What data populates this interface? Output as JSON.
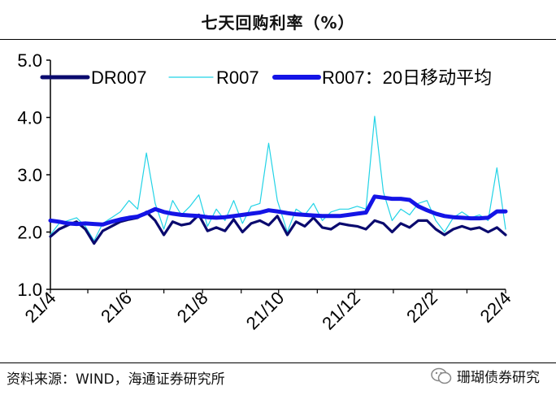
{
  "header": {
    "title": "七天回购利率（%）"
  },
  "footer": {
    "source": "资料来源：WIND，海通证券研究所",
    "watermark": "珊瑚债券研究"
  },
  "chart_data": {
    "type": "line",
    "title": "七天回购利率（%）",
    "xlabel": "",
    "ylabel": "",
    "ylim": [
      1.0,
      5.0
    ],
    "yticks": [
      "1.0",
      "2.0",
      "3.0",
      "4.0",
      "5.0"
    ],
    "xticks": [
      "21/4",
      "21/6",
      "21/8",
      "21/10",
      "21/12",
      "22/2",
      "22/4"
    ],
    "grid": false,
    "legend": "top",
    "colors": {
      "DR007": "#0a0a6e",
      "R007": "#22d3e6",
      "R007_MA20": "#1414e6"
    },
    "series": [
      {
        "name": "DR007",
        "x": [
          "2021-04-01",
          "2021-04-08",
          "2021-04-15",
          "2021-04-22",
          "2021-04-29",
          "2021-05-06",
          "2021-05-13",
          "2021-05-20",
          "2021-05-27",
          "2021-06-03",
          "2021-06-10",
          "2021-06-17",
          "2021-06-24",
          "2021-07-01",
          "2021-07-08",
          "2021-07-15",
          "2021-07-22",
          "2021-07-29",
          "2021-08-05",
          "2021-08-12",
          "2021-08-19",
          "2021-08-26",
          "2021-09-02",
          "2021-09-09",
          "2021-09-16",
          "2021-09-23",
          "2021-09-30",
          "2021-10-08",
          "2021-10-15",
          "2021-10-22",
          "2021-10-29",
          "2021-11-05",
          "2021-11-12",
          "2021-11-19",
          "2021-11-26",
          "2021-12-03",
          "2021-12-10",
          "2021-12-17",
          "2021-12-24",
          "2021-12-31",
          "2022-01-07",
          "2022-01-14",
          "2022-01-21",
          "2022-01-28",
          "2022-02-04",
          "2022-02-11",
          "2022-02-18",
          "2022-02-25",
          "2022-03-04",
          "2022-03-11",
          "2022-03-18",
          "2022-03-25",
          "2022-04-01"
        ],
        "values": [
          1.92,
          2.05,
          2.12,
          2.18,
          2.05,
          1.8,
          2.02,
          2.1,
          2.18,
          2.22,
          2.25,
          2.35,
          2.2,
          1.95,
          2.18,
          2.12,
          2.15,
          2.3,
          2.02,
          2.08,
          2.02,
          2.22,
          2.0,
          2.15,
          2.2,
          2.12,
          2.28,
          1.95,
          2.18,
          2.1,
          2.25,
          2.08,
          2.05,
          2.15,
          2.12,
          2.1,
          2.05,
          2.2,
          2.15,
          2.0,
          2.15,
          2.08,
          2.2,
          2.2,
          2.05,
          1.95,
          2.05,
          2.1,
          2.05,
          2.08,
          2.0,
          2.08,
          1.95
        ]
      },
      {
        "name": "R007",
        "x": [
          "2021-04-01",
          "2021-04-08",
          "2021-04-15",
          "2021-04-22",
          "2021-04-29",
          "2021-05-06",
          "2021-05-13",
          "2021-05-20",
          "2021-05-27",
          "2021-06-03",
          "2021-06-10",
          "2021-06-17",
          "2021-06-24",
          "2021-07-01",
          "2021-07-08",
          "2021-07-15",
          "2021-07-22",
          "2021-07-29",
          "2021-08-05",
          "2021-08-12",
          "2021-08-19",
          "2021-08-26",
          "2021-09-02",
          "2021-09-09",
          "2021-09-16",
          "2021-09-23",
          "2021-09-30",
          "2021-10-08",
          "2021-10-15",
          "2021-10-22",
          "2021-10-29",
          "2021-11-05",
          "2021-11-12",
          "2021-11-19",
          "2021-11-26",
          "2021-12-03",
          "2021-12-10",
          "2021-12-17",
          "2021-12-24",
          "2021-12-31",
          "2022-01-07",
          "2022-01-14",
          "2022-01-21",
          "2022-01-28",
          "2022-02-04",
          "2022-02-11",
          "2022-02-18",
          "2022-02-25",
          "2022-03-04",
          "2022-03-11",
          "2022-03-18",
          "2022-03-25",
          "2022-04-01"
        ],
        "values": [
          1.95,
          2.15,
          2.2,
          2.25,
          2.1,
          1.85,
          2.15,
          2.25,
          2.35,
          2.55,
          2.4,
          3.38,
          2.5,
          2.05,
          2.55,
          2.3,
          2.45,
          2.65,
          2.1,
          2.4,
          2.2,
          2.55,
          2.15,
          2.45,
          2.5,
          3.55,
          2.55,
          2.0,
          2.4,
          2.3,
          2.5,
          2.2,
          2.35,
          2.4,
          2.4,
          2.45,
          2.4,
          4.02,
          2.7,
          2.2,
          2.4,
          2.3,
          2.5,
          2.55,
          2.2,
          2.0,
          2.25,
          2.35,
          2.25,
          2.3,
          2.2,
          3.12,
          2.05
        ]
      },
      {
        "name": "R007：20日移动平均",
        "x": [
          "2021-04-01",
          "2021-04-08",
          "2021-04-15",
          "2021-04-22",
          "2021-04-29",
          "2021-05-06",
          "2021-05-13",
          "2021-05-20",
          "2021-05-27",
          "2021-06-03",
          "2021-06-10",
          "2021-06-17",
          "2021-06-24",
          "2021-07-01",
          "2021-07-08",
          "2021-07-15",
          "2021-07-22",
          "2021-07-29",
          "2021-08-05",
          "2021-08-12",
          "2021-08-19",
          "2021-08-26",
          "2021-09-02",
          "2021-09-09",
          "2021-09-16",
          "2021-09-23",
          "2021-09-30",
          "2021-10-08",
          "2021-10-15",
          "2021-10-22",
          "2021-10-29",
          "2021-11-05",
          "2021-11-12",
          "2021-11-19",
          "2021-11-26",
          "2021-12-03",
          "2021-12-10",
          "2021-12-17",
          "2021-12-24",
          "2021-12-31",
          "2022-01-07",
          "2022-01-14",
          "2022-01-21",
          "2022-01-28",
          "2022-02-04",
          "2022-02-11",
          "2022-02-18",
          "2022-02-25",
          "2022-03-04",
          "2022-03-11",
          "2022-03-18",
          "2022-03-25",
          "2022-04-01"
        ],
        "values": [
          2.2,
          2.18,
          2.15,
          2.14,
          2.15,
          2.14,
          2.13,
          2.18,
          2.22,
          2.25,
          2.27,
          2.33,
          2.4,
          2.35,
          2.32,
          2.3,
          2.29,
          2.28,
          2.26,
          2.25,
          2.26,
          2.28,
          2.3,
          2.32,
          2.34,
          2.38,
          2.36,
          2.33,
          2.31,
          2.3,
          2.29,
          2.28,
          2.28,
          2.28,
          2.3,
          2.32,
          2.34,
          2.62,
          2.6,
          2.58,
          2.58,
          2.56,
          2.45,
          2.38,
          2.32,
          2.28,
          2.26,
          2.25,
          2.24,
          2.24,
          2.25,
          2.36,
          2.36
        ]
      }
    ]
  }
}
